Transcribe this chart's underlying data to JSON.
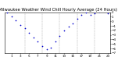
{
  "title": "Milwaukee Weather Wind Chill Hourly Average (24 Hours)",
  "title_fontsize": 3.8,
  "hours": [
    0,
    1,
    2,
    3,
    4,
    5,
    6,
    7,
    8,
    9,
    10,
    11,
    12,
    13,
    14,
    15,
    16,
    17,
    18,
    19,
    20,
    21,
    22,
    23
  ],
  "values": [
    2.0,
    1.0,
    0.2,
    -0.8,
    -1.5,
    -2.5,
    -3.5,
    -4.5,
    -5.5,
    -6.2,
    -5.8,
    -4.5,
    -3.2,
    -2.0,
    -1.2,
    -0.5,
    0.5,
    1.5,
    2.0,
    1.5,
    1.8,
    2.2,
    2.5,
    1.8
  ],
  "dot_color": "#0000cc",
  "dot_size": 1.5,
  "bg_color": "#ffffff",
  "grid_color": "#999999",
  "tick_color": "#000000",
  "ylim_min": -7,
  "ylim_max": 2,
  "xlim_min": 0,
  "xlim_max": 23,
  "xlabel_fontsize": 3.0,
  "ylabel_fontsize": 3.0,
  "spine_color": "#000000",
  "vgrid_positions": [
    4,
    8,
    12,
    16,
    20
  ],
  "xtick_positions": [
    1,
    3,
    5,
    7,
    9,
    11,
    13,
    15,
    17,
    19,
    21,
    23
  ],
  "ytick_positions": [
    -7,
    -6,
    -5,
    -4,
    -3,
    -2,
    -1,
    0,
    1,
    2
  ]
}
